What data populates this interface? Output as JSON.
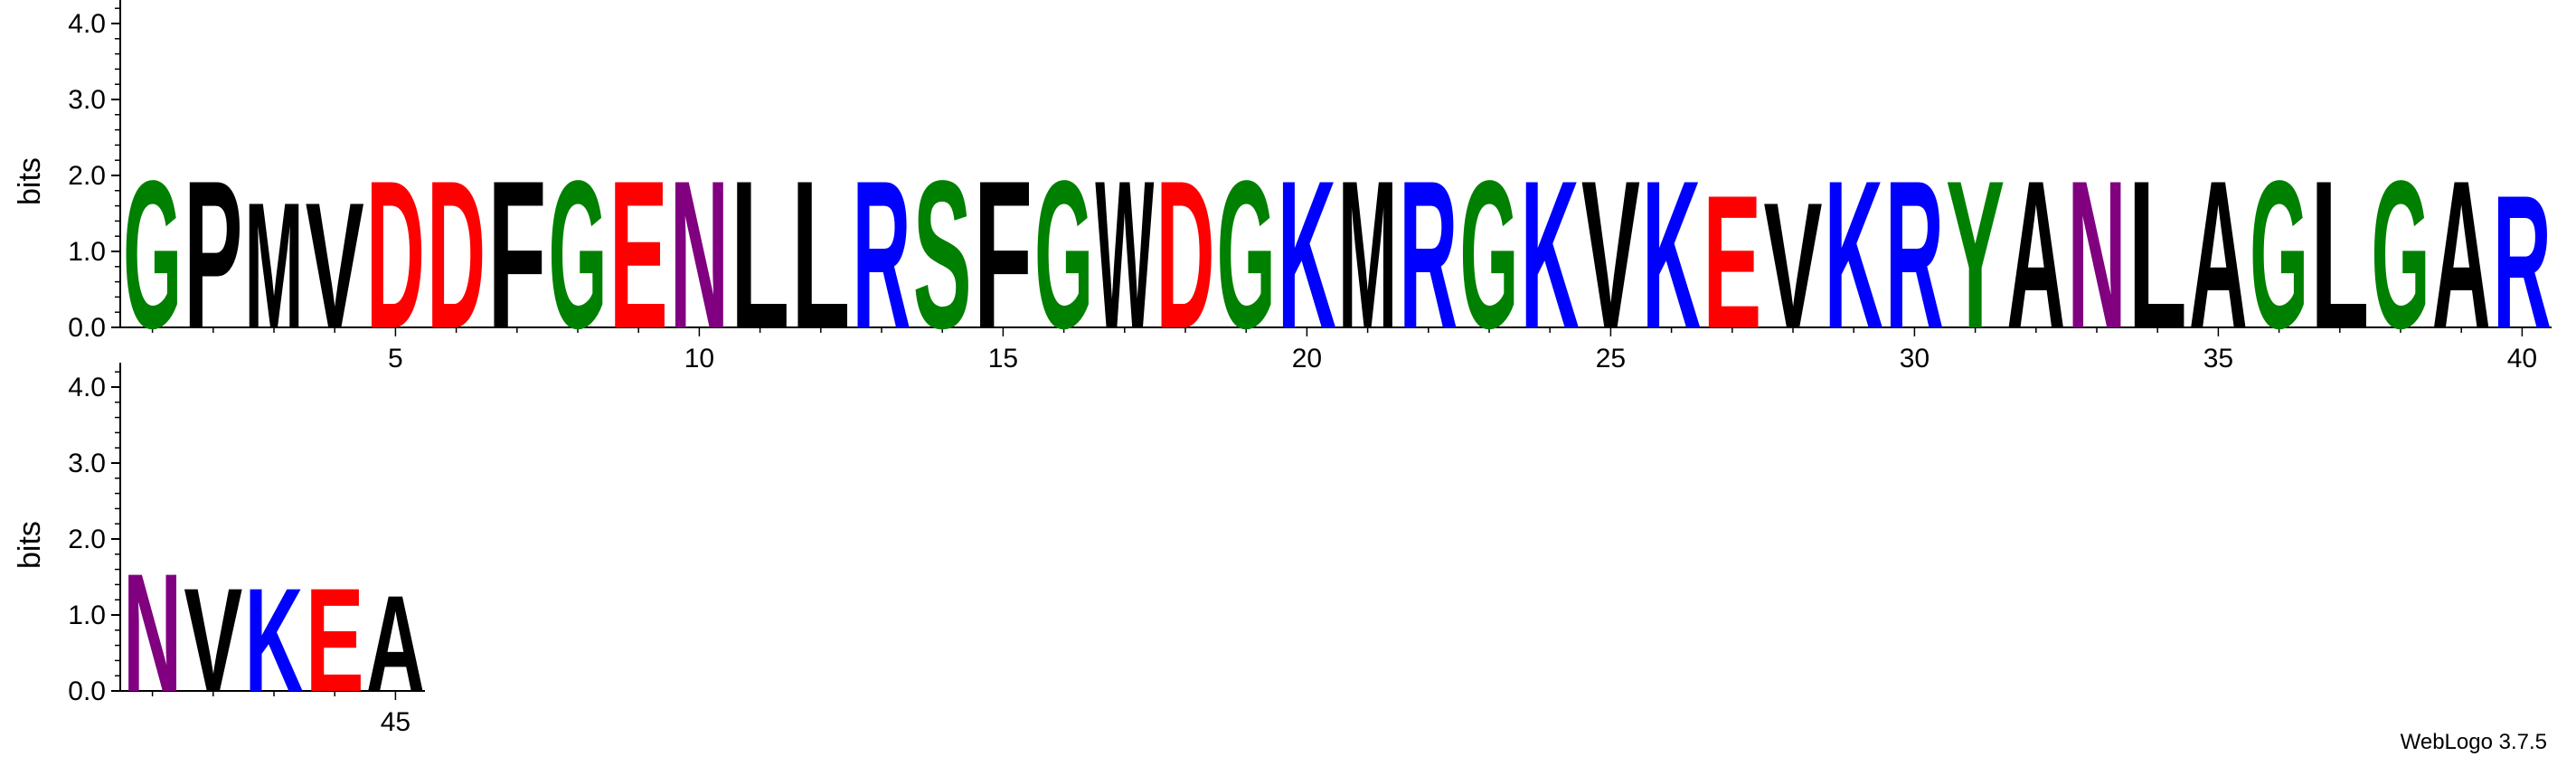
{
  "chart_data": {
    "type": "sequence-logo",
    "ylabel": "bits",
    "yticks": [
      "0.0",
      "1.0",
      "2.0",
      "3.0",
      "4.0"
    ],
    "ylim": [
      0,
      4.32
    ],
    "colors": {
      "G": "#008000",
      "S": "#008000",
      "Y": "#008000",
      "T": "#008000",
      "C": "#008000",
      "N": "#800080",
      "Q": "#800080",
      "K": "#0000ff",
      "R": "#0000ff",
      "H": "#0000ff",
      "D": "#ff0000",
      "E": "#ff0000",
      "P": "#000000",
      "M": "#000000",
      "V": "#000000",
      "F": "#000000",
      "L": "#000000",
      "W": "#000000",
      "A": "#000000",
      "I": "#000000"
    },
    "rows": [
      {
        "xticks": [
          "5",
          "10",
          "15",
          "20",
          "25",
          "30",
          "35",
          "40"
        ],
        "positions": [
          {
            "pos": 1,
            "letter": "G",
            "bits": 2.0
          },
          {
            "pos": 2,
            "letter": "P",
            "bits": 2.0
          },
          {
            "pos": 3,
            "letter": "M",
            "bits": 1.7
          },
          {
            "pos": 4,
            "letter": "V",
            "bits": 1.7
          },
          {
            "pos": 5,
            "letter": "D",
            "bits": 2.0
          },
          {
            "pos": 6,
            "letter": "D",
            "bits": 2.0
          },
          {
            "pos": 7,
            "letter": "F",
            "bits": 2.0
          },
          {
            "pos": 8,
            "letter": "G",
            "bits": 2.0
          },
          {
            "pos": 9,
            "letter": "E",
            "bits": 2.0
          },
          {
            "pos": 10,
            "letter": "N",
            "bits": 2.0
          },
          {
            "pos": 11,
            "letter": "L",
            "bits": 2.0
          },
          {
            "pos": 12,
            "letter": "L",
            "bits": 2.0
          },
          {
            "pos": 13,
            "letter": "R",
            "bits": 2.0
          },
          {
            "pos": 14,
            "letter": "S",
            "bits": 2.0
          },
          {
            "pos": 15,
            "letter": "F",
            "bits": 2.0
          },
          {
            "pos": 16,
            "letter": "G",
            "bits": 2.0
          },
          {
            "pos": 17,
            "letter": "W",
            "bits": 2.0
          },
          {
            "pos": 18,
            "letter": "D",
            "bits": 2.0
          },
          {
            "pos": 19,
            "letter": "G",
            "bits": 2.0
          },
          {
            "pos": 20,
            "letter": "K",
            "bits": 2.0
          },
          {
            "pos": 21,
            "letter": "M",
            "bits": 2.0
          },
          {
            "pos": 22,
            "letter": "R",
            "bits": 2.0
          },
          {
            "pos": 23,
            "letter": "G",
            "bits": 2.0
          },
          {
            "pos": 24,
            "letter": "K",
            "bits": 2.0
          },
          {
            "pos": 25,
            "letter": "V",
            "bits": 2.0
          },
          {
            "pos": 26,
            "letter": "K",
            "bits": 2.0
          },
          {
            "pos": 27,
            "letter": "E",
            "bits": 1.8
          },
          {
            "pos": 28,
            "letter": "V",
            "bits": 1.7
          },
          {
            "pos": 29,
            "letter": "K",
            "bits": 2.0
          },
          {
            "pos": 30,
            "letter": "R",
            "bits": 2.0
          },
          {
            "pos": 31,
            "letter": "Y",
            "bits": 2.0
          },
          {
            "pos": 32,
            "letter": "A",
            "bits": 2.0
          },
          {
            "pos": 33,
            "letter": "N",
            "bits": 2.0
          },
          {
            "pos": 34,
            "letter": "L",
            "bits": 2.0
          },
          {
            "pos": 35,
            "letter": "A",
            "bits": 2.0
          },
          {
            "pos": 36,
            "letter": "G",
            "bits": 2.0
          },
          {
            "pos": 37,
            "letter": "L",
            "bits": 2.0
          },
          {
            "pos": 38,
            "letter": "G",
            "bits": 2.0
          },
          {
            "pos": 39,
            "letter": "A",
            "bits": 2.0
          },
          {
            "pos": 40,
            "letter": "R",
            "bits": 1.8
          }
        ]
      },
      {
        "xticks": [
          "45"
        ],
        "positions": [
          {
            "pos": 41,
            "letter": "N",
            "bits": 1.6
          },
          {
            "pos": 42,
            "letter": "V",
            "bits": 1.4
          },
          {
            "pos": 43,
            "letter": "K",
            "bits": 1.4
          },
          {
            "pos": 44,
            "letter": "E",
            "bits": 1.4
          },
          {
            "pos": 45,
            "letter": "A",
            "bits": 1.3
          }
        ]
      }
    ]
  },
  "footer": {
    "credit": "WebLogo 3.7.5"
  }
}
